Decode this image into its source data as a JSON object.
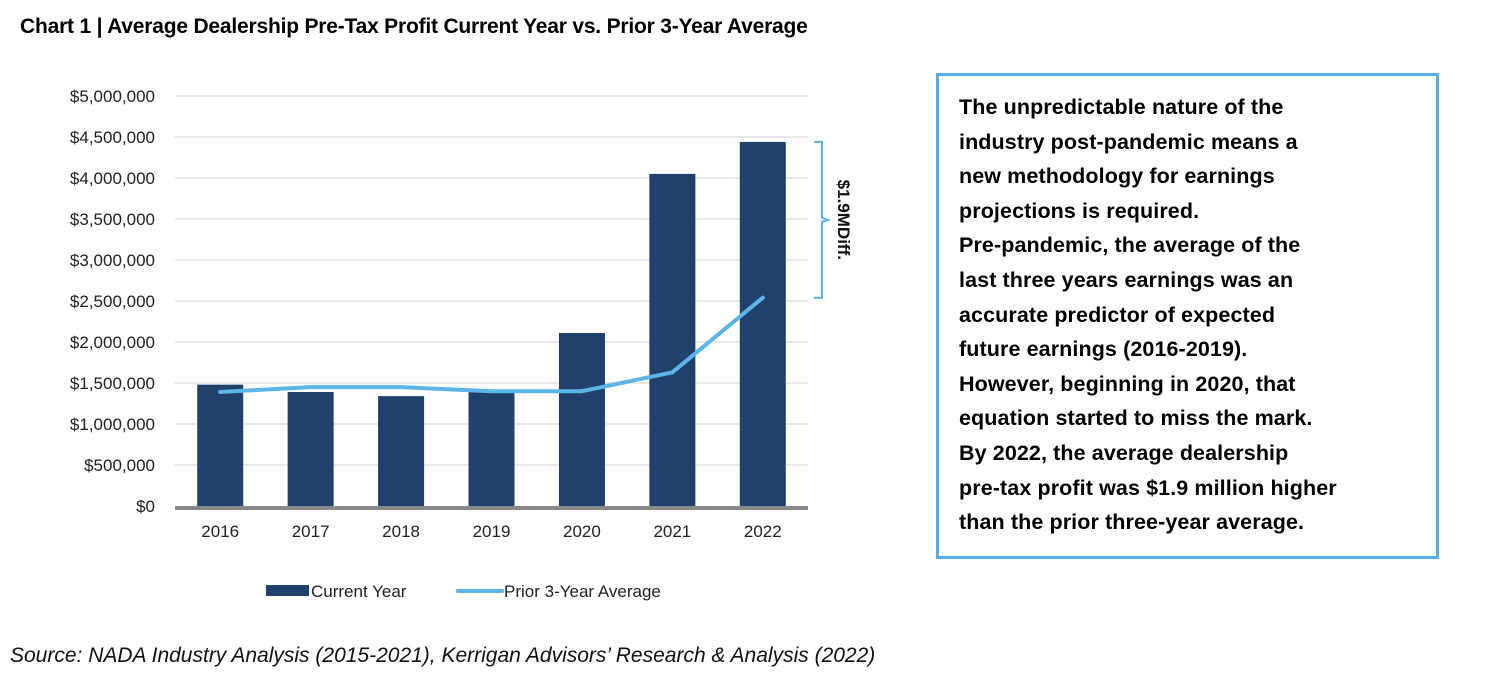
{
  "title": "Chart 1 | Average Dealership Pre-Tax Profit Current Year vs. Prior 3-Year Average",
  "colors": {
    "bar": "#1f416c",
    "line": "#5cb4e8",
    "grid": "#dcdcdc",
    "axis": "#888888",
    "box_border": "#55aee6"
  },
  "chart_data": {
    "type": "bar",
    "title": "Average Dealership Pre-Tax Profit Current Year vs. Prior 3-Year Average",
    "xlabel": "",
    "ylabel": "",
    "categories": [
      "2016",
      "2017",
      "2018",
      "2019",
      "2020",
      "2021",
      "2022"
    ],
    "series": [
      {
        "name": "Current Year",
        "type": "bar",
        "values": [
          1480000,
          1390000,
          1340000,
          1390000,
          2110000,
          4050000,
          4440000
        ]
      },
      {
        "name": "Prior 3-Year Average",
        "type": "line",
        "values": [
          1390000,
          1450000,
          1450000,
          1400000,
          1400000,
          1630000,
          2540000
        ]
      }
    ],
    "ylim": [
      0,
      5000000
    ],
    "yticks": [
      0,
      500000,
      1000000,
      1500000,
      2000000,
      2500000,
      3000000,
      3500000,
      4000000,
      4500000,
      5000000
    ],
    "ytick_labels": [
      "$0",
      "$500,000",
      "$1,000,000",
      "$1,500,000",
      "$2,000,000",
      "$2,500,000",
      "$3,000,000",
      "$3,500,000",
      "$4,000,000",
      "$4,500,000",
      "$5,000,000"
    ],
    "grid": true,
    "legend": {
      "placement": "bottom",
      "entries": [
        "Current Year",
        "Prior 3-Year Average"
      ]
    },
    "annotations": [
      {
        "text": "$1.9MDiff.",
        "type": "bracket",
        "category": "2022",
        "from_value": 2540000,
        "to_value": 4440000
      }
    ]
  },
  "text_box": {
    "lines": [
      "The unpredictable nature of the",
      "industry post-pandemic means a",
      "new methodology for earnings",
      "projections is required.",
      "Pre-pandemic, the average of the",
      "last three years earnings was an",
      "accurate predictor of expected",
      "future earnings (2016-2019).",
      "However, beginning in 2020, that",
      "equation started to miss the mark.",
      "By 2022, the average dealership",
      "pre-tax profit was $1.9 million higher",
      "than the prior three-year average."
    ]
  },
  "source": "Source: NADA Industry Analysis (2015-2021), Kerrigan Advisors’ Research & Analysis (2022)"
}
